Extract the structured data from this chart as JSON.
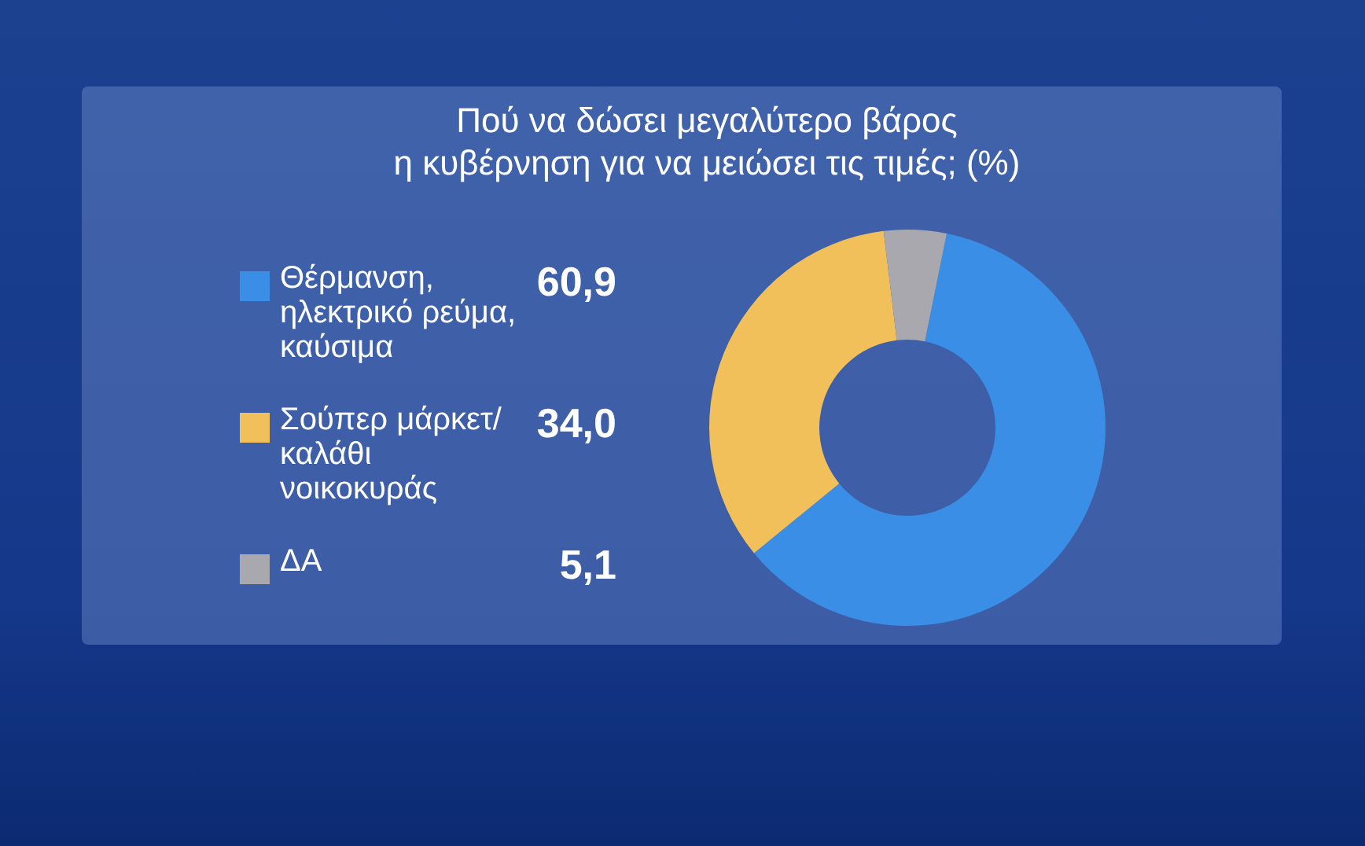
{
  "chart_data": {
    "type": "donut",
    "title": "Πού να δώσει μεγαλύτερο βάρος η κυβέρνηση για να μειώσει τις τιμές; (%)",
    "categories": [
      "Θέρμανση, ηλεκτρικό ρεύμα, καύσιμα",
      "Σούπερ μάρκετ/καλάθι νοικοκυράς",
      "ΔΑ"
    ],
    "values": [
      60.9,
      34.0,
      5.1
    ],
    "colors": [
      "#3a8ee6",
      "#f2c05a",
      "#a8a8ae"
    ],
    "value_labels": [
      "60,9",
      "34,0",
      "5,1"
    ],
    "legend": "left"
  }
}
